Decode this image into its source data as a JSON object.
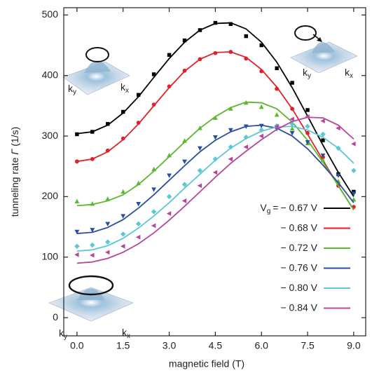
{
  "chart_data": {
    "type": "scatter",
    "xlabel": "magnetic field (T)",
    "ylabel": {
      "text": "tunneling rate",
      "symbol": "Γ",
      "unit": "(1/s)"
    },
    "legend_title": {
      "main": "V",
      "sub": "g",
      "eq": "="
    },
    "inset_labels": {
      "k": "k",
      "y": "y",
      "x": "x"
    },
    "xlim": [
      -0.43,
      9.39
    ],
    "ylim": [
      -30,
      512
    ],
    "xticks": [
      {
        "value": 0,
        "label": "0.0"
      },
      1.5,
      {
        "value": 3,
        "label": "3.0"
      },
      4.5,
      {
        "value": 6,
        "label": "6.0"
      },
      7.5,
      {
        "value": 9,
        "label": "9.0"
      }
    ],
    "yticks": [
      0,
      100,
      200,
      300,
      400,
      500
    ],
    "x": [
      0,
      0.5,
      1,
      1.5,
      2,
      2.5,
      3,
      3.5,
      4,
      4.5,
      5,
      5.5,
      6,
      6.5,
      7,
      7.5,
      8,
      8.5,
      9
    ],
    "series": [
      {
        "name": "− 0.67 V",
        "color": "#000000",
        "marker": "square",
        "values": [
          303,
          307,
          320,
          340,
          368,
          402,
          434,
          458,
          475,
          487,
          485,
          465,
          450,
          412,
          388,
          343,
          293,
          237,
          208
        ],
        "fit": [
          304,
          307,
          318,
          338,
          365,
          397,
          428,
          455,
          475,
          486,
          487,
          477,
          455,
          422,
          380,
          333,
          285,
          240,
          200
        ]
      },
      {
        "name": "− 0.68 V",
        "color": "#e3202a",
        "marker": "circle",
        "values": [
          258,
          262,
          276,
          296,
          322,
          352,
          382,
          408,
          427,
          437,
          439,
          428,
          407,
          378,
          345,
          305,
          265,
          218,
          183
        ],
        "fit": [
          258,
          262,
          274,
          294,
          320,
          350,
          380,
          407,
          427,
          438,
          439,
          430,
          410,
          381,
          345,
          303,
          260,
          218,
          178
        ]
      },
      {
        "name": "− 0.72 V",
        "color": "#5cb82e",
        "marker": "triangle-up",
        "values": [
          192,
          188,
          196,
          208,
          222,
          245,
          268,
          292,
          313,
          330,
          345,
          355,
          348,
          335,
          312,
          288,
          260,
          225,
          195
        ],
        "fit": [
          185,
          187,
          193,
          203,
          220,
          242,
          266,
          290,
          313,
          332,
          347,
          356,
          355,
          345,
          323,
          293,
          257,
          218,
          178
        ]
      },
      {
        "name": "− 0.76 V",
        "color": "#2a4fa0",
        "marker": "triangle-down",
        "values": [
          142,
          145,
          155,
          168,
          188,
          212,
          235,
          258,
          280,
          298,
          310,
          316,
          317,
          312,
          305,
          290,
          268,
          235,
          205
        ],
        "fit": [
          139,
          141,
          149,
          162,
          181,
          203,
          227,
          251,
          274,
          293,
          307,
          316,
          318,
          313,
          300,
          279,
          252,
          223,
          190
        ]
      },
      {
        "name": "− 0.80 V",
        "color": "#5cc8d6",
        "marker": "diamond",
        "values": [
          118,
          120,
          125,
          138,
          155,
          175,
          200,
          220,
          243,
          262,
          282,
          298,
          310,
          317,
          320,
          316,
          303,
          280,
          243
        ],
        "fit": [
          110,
          112,
          119,
          131,
          148,
          168,
          190,
          214,
          237,
          260,
          280,
          296,
          308,
          315,
          316,
          310,
          298,
          280,
          255
        ]
      },
      {
        "name": "− 0.84 V",
        "color": "#b8449c",
        "marker": "triangle-left",
        "values": [
          104,
          103,
          108,
          118,
          133,
          152,
          172,
          193,
          218,
          240,
          262,
          282,
          300,
          316,
          328,
          332,
          325,
          313,
          287
        ],
        "fit": [
          90,
          92,
          98,
          108,
          122,
          140,
          161,
          184,
          208,
          232,
          255,
          275,
          294,
          311,
          324,
          331,
          330,
          318,
          295
        ]
      }
    ]
  }
}
